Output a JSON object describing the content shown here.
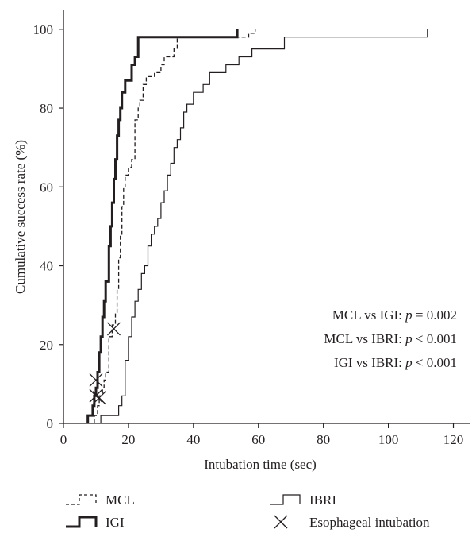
{
  "chart_data": {
    "type": "line",
    "title": "",
    "xlabel": "Intubation time (sec)",
    "ylabel": "Cumulative success rate (%)",
    "xlim": [
      0,
      125
    ],
    "ylim": [
      0,
      105
    ],
    "x_ticks": [
      0,
      20,
      40,
      60,
      80,
      100,
      120
    ],
    "y_ticks": [
      0,
      20,
      40,
      60,
      80,
      100
    ],
    "grid": false,
    "step": true,
    "legend_position": "bottom",
    "series": [
      {
        "name": "MCL",
        "style": "dashed",
        "stroke": "#231f20",
        "points": [
          [
            9.5,
            0
          ],
          [
            9.5,
            2
          ],
          [
            10.5,
            2
          ],
          [
            10.5,
            4.5
          ],
          [
            11,
            4.5
          ],
          [
            11,
            7
          ],
          [
            12,
            7
          ],
          [
            12,
            9
          ],
          [
            12.5,
            9
          ],
          [
            12.5,
            11
          ],
          [
            13,
            11
          ],
          [
            13,
            13
          ],
          [
            14,
            13
          ],
          [
            14,
            22
          ],
          [
            15,
            22
          ],
          [
            15,
            25
          ],
          [
            16,
            25
          ],
          [
            16,
            28
          ],
          [
            16.5,
            28
          ],
          [
            16.5,
            34
          ],
          [
            17,
            34
          ],
          [
            17,
            42
          ],
          [
            17.5,
            42
          ],
          [
            17.5,
            48
          ],
          [
            18,
            48
          ],
          [
            18,
            55
          ],
          [
            18.5,
            55
          ],
          [
            18.5,
            60
          ],
          [
            19,
            60
          ],
          [
            19,
            63
          ],
          [
            20,
            63
          ],
          [
            20,
            65
          ],
          [
            21,
            65
          ],
          [
            21,
            67
          ],
          [
            22,
            67
          ],
          [
            22,
            77
          ],
          [
            23,
            77
          ],
          [
            23,
            80
          ],
          [
            23.5,
            80
          ],
          [
            23.5,
            82
          ],
          [
            24.5,
            82
          ],
          [
            24.5,
            86
          ],
          [
            25.5,
            86
          ],
          [
            25.5,
            88
          ],
          [
            28,
            88
          ],
          [
            28,
            89
          ],
          [
            30,
            89
          ],
          [
            30,
            91
          ],
          [
            31,
            91
          ],
          [
            31,
            93
          ],
          [
            34,
            93
          ],
          [
            34,
            95
          ],
          [
            35,
            95
          ],
          [
            35,
            98
          ],
          [
            57,
            98
          ],
          [
            57,
            99
          ],
          [
            59,
            99
          ],
          [
            59,
            100
          ]
        ]
      },
      {
        "name": "IGI",
        "style": "thick",
        "stroke": "#231f20",
        "points": [
          [
            7.5,
            0
          ],
          [
            7.5,
            2
          ],
          [
            9,
            2
          ],
          [
            9,
            4.5
          ],
          [
            9.5,
            4.5
          ],
          [
            9.5,
            7
          ],
          [
            10,
            7
          ],
          [
            10,
            9
          ],
          [
            10.5,
            9
          ],
          [
            10.5,
            13
          ],
          [
            11,
            13
          ],
          [
            11,
            18
          ],
          [
            11.5,
            18
          ],
          [
            11.5,
            22
          ],
          [
            12,
            22
          ],
          [
            12,
            27
          ],
          [
            12.5,
            27
          ],
          [
            12.5,
            31
          ],
          [
            13,
            31
          ],
          [
            13,
            36
          ],
          [
            14,
            36
          ],
          [
            14,
            45
          ],
          [
            14.5,
            45
          ],
          [
            14.5,
            50
          ],
          [
            15,
            50
          ],
          [
            15,
            56
          ],
          [
            15.5,
            56
          ],
          [
            15.5,
            62
          ],
          [
            16,
            62
          ],
          [
            16,
            67
          ],
          [
            16.5,
            67
          ],
          [
            16.5,
            73
          ],
          [
            17,
            73
          ],
          [
            17,
            77
          ],
          [
            17.5,
            77
          ],
          [
            17.5,
            80
          ],
          [
            18,
            80
          ],
          [
            18,
            84
          ],
          [
            19,
            84
          ],
          [
            19,
            87
          ],
          [
            21,
            87
          ],
          [
            21,
            91
          ],
          [
            22,
            91
          ],
          [
            22,
            93
          ],
          [
            23,
            93
          ],
          [
            23,
            98
          ],
          [
            53.5,
            98
          ],
          [
            53.5,
            100
          ]
        ]
      },
      {
        "name": "IBRI",
        "style": "thin",
        "stroke": "#231f20",
        "points": [
          [
            11.5,
            0
          ],
          [
            11.5,
            2
          ],
          [
            17,
            2
          ],
          [
            17,
            4.5
          ],
          [
            18,
            4.5
          ],
          [
            18,
            7
          ],
          [
            19,
            7
          ],
          [
            19,
            16
          ],
          [
            20,
            16
          ],
          [
            20,
            22
          ],
          [
            21,
            22
          ],
          [
            21,
            27
          ],
          [
            22,
            27
          ],
          [
            22,
            31
          ],
          [
            23,
            31
          ],
          [
            23,
            34
          ],
          [
            24,
            34
          ],
          [
            24,
            38
          ],
          [
            25,
            38
          ],
          [
            25,
            40
          ],
          [
            26,
            40
          ],
          [
            26,
            45
          ],
          [
            27,
            45
          ],
          [
            27,
            48
          ],
          [
            28,
            48
          ],
          [
            28,
            50
          ],
          [
            29,
            50
          ],
          [
            29,
            52
          ],
          [
            30,
            52
          ],
          [
            30,
            56
          ],
          [
            31,
            56
          ],
          [
            31,
            59
          ],
          [
            32,
            59
          ],
          [
            32,
            63
          ],
          [
            33,
            63
          ],
          [
            33,
            66
          ],
          [
            34,
            66
          ],
          [
            34,
            70
          ],
          [
            35,
            70
          ],
          [
            35,
            72
          ],
          [
            36,
            72
          ],
          [
            36,
            75
          ],
          [
            37,
            75
          ],
          [
            37,
            79
          ],
          [
            38,
            79
          ],
          [
            38,
            81
          ],
          [
            40,
            81
          ],
          [
            40,
            84
          ],
          [
            43,
            84
          ],
          [
            43,
            86
          ],
          [
            45,
            86
          ],
          [
            45,
            89
          ],
          [
            50,
            89
          ],
          [
            50,
            91
          ],
          [
            54,
            91
          ],
          [
            54,
            93
          ],
          [
            58,
            93
          ],
          [
            58,
            95
          ],
          [
            68,
            95
          ],
          [
            68,
            98
          ],
          [
            112,
            98
          ],
          [
            112,
            100
          ]
        ]
      }
    ],
    "markers": {
      "name": "Esophageal intubation",
      "symbol": "cross",
      "points": [
        [
          10,
          11
        ],
        [
          10,
          7
        ],
        [
          11,
          6.5
        ],
        [
          15.5,
          24
        ]
      ]
    },
    "annotations": [
      {
        "prefix": "MCL vs IGI: ",
        "italic": "p",
        "suffix": " = 0.002"
      },
      {
        "prefix": "MCL vs IBRI: ",
        "italic": "p",
        "suffix": " < 0.001"
      },
      {
        "prefix": "IGI vs IBRI: ",
        "italic": "p",
        "suffix": " < 0.001"
      }
    ]
  }
}
